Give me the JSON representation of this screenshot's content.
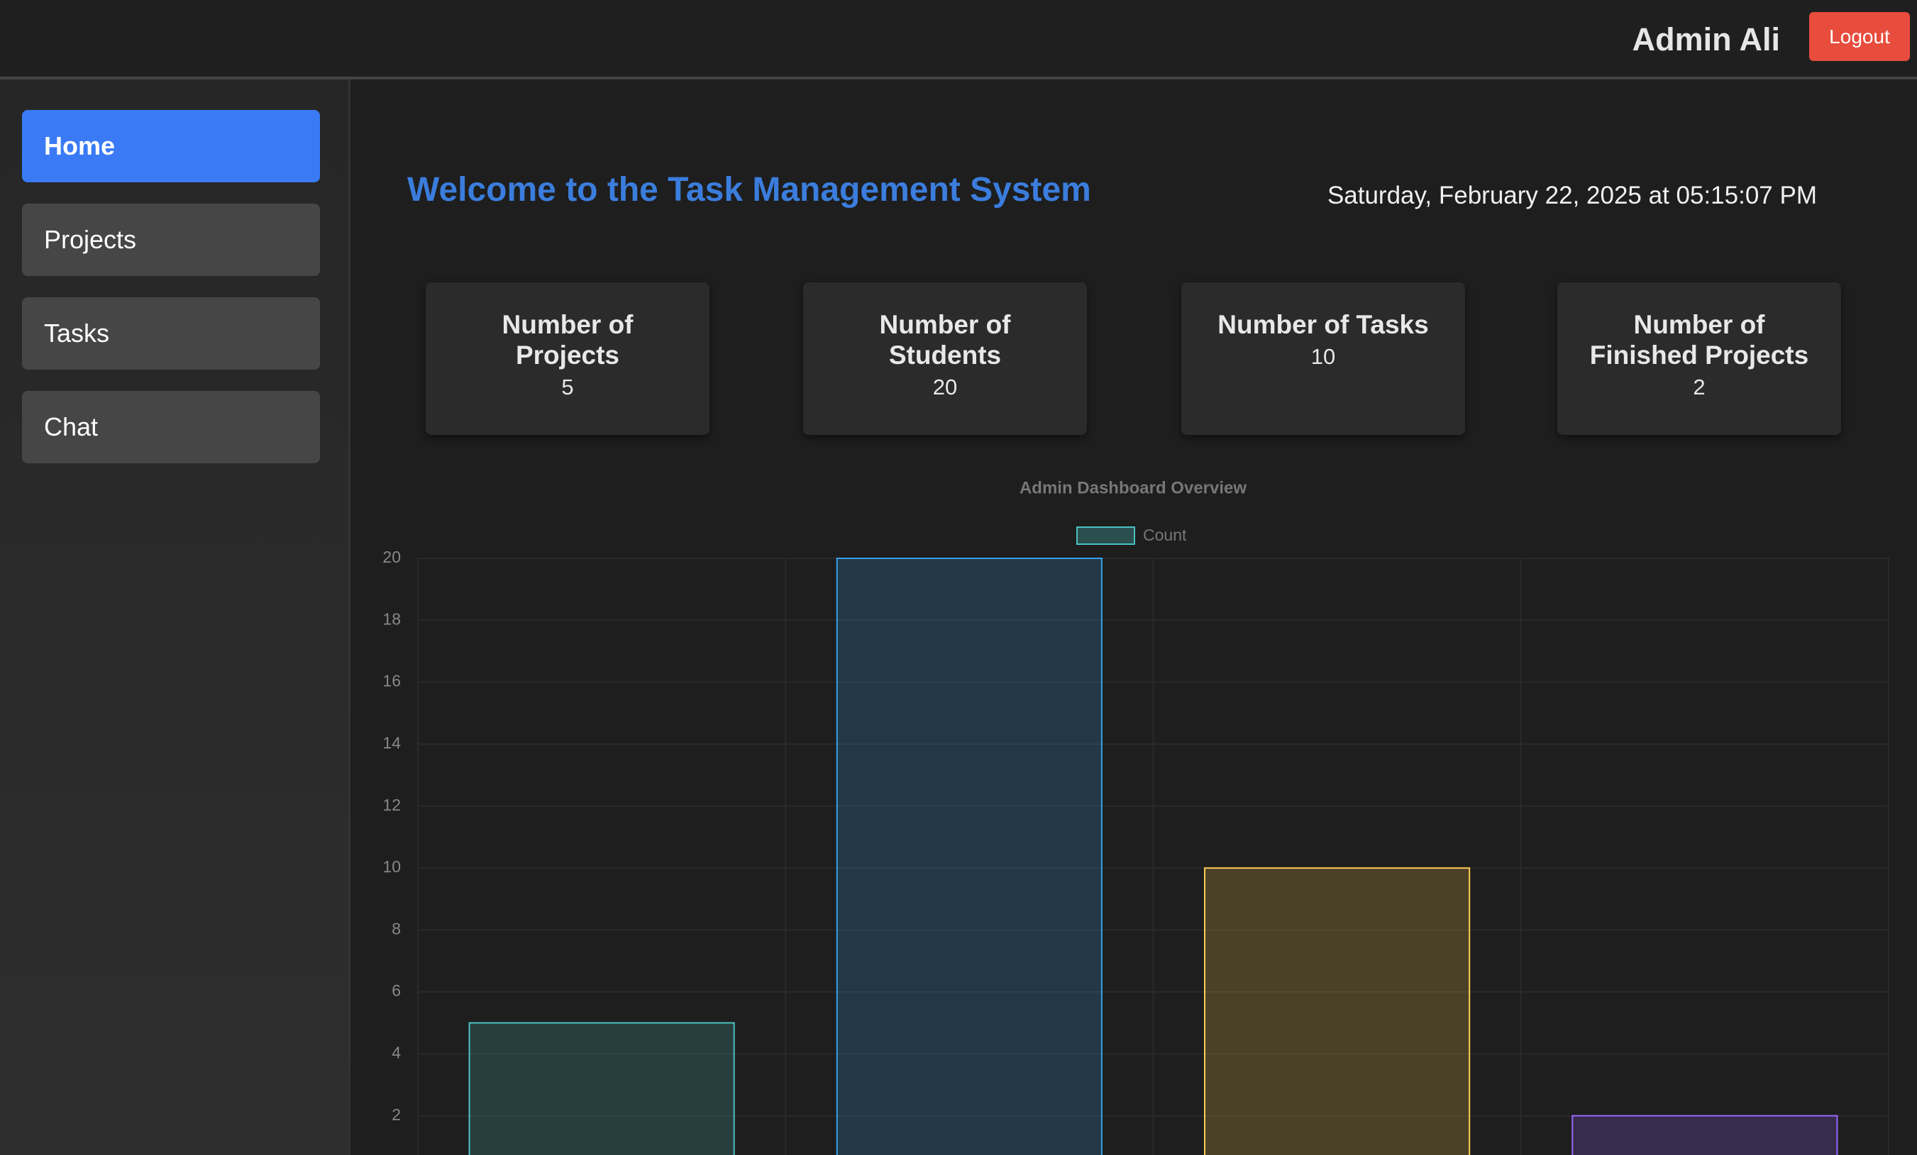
{
  "header": {
    "user": "Admin Ali",
    "logout": "Logout"
  },
  "nav": [
    "Home",
    "Projects",
    "Tasks",
    "Chat"
  ],
  "welcome": "Welcome to the Task Management System",
  "datetime": "Saturday, February 22, 2025 at 05:15:07 PM",
  "cards": [
    {
      "title": "Number of Projects",
      "value": 5
    },
    {
      "title": "Number of Students",
      "value": 20
    },
    {
      "title": "Number of Tasks",
      "value": 10
    },
    {
      "title": "Number of Finished Projects",
      "value": 2
    }
  ],
  "chart_data": {
    "type": "bar",
    "title": "Admin Dashboard Overview",
    "categories": [
      null,
      null,
      null,
      null
    ],
    "series": [
      {
        "name": "Count",
        "color": "#4bc0c0",
        "colors": [
          "#4bc0c0",
          "#36a2eb",
          "#ffce56",
          "#9966ff"
        ],
        "values": [
          5,
          20,
          10,
          2
        ]
      }
    ],
    "ylim": [
      0,
      20
    ],
    "yticks": [
      2,
      4,
      6,
      8,
      10,
      12,
      14,
      16,
      18,
      20
    ],
    "grid": true,
    "legend": "top"
  }
}
